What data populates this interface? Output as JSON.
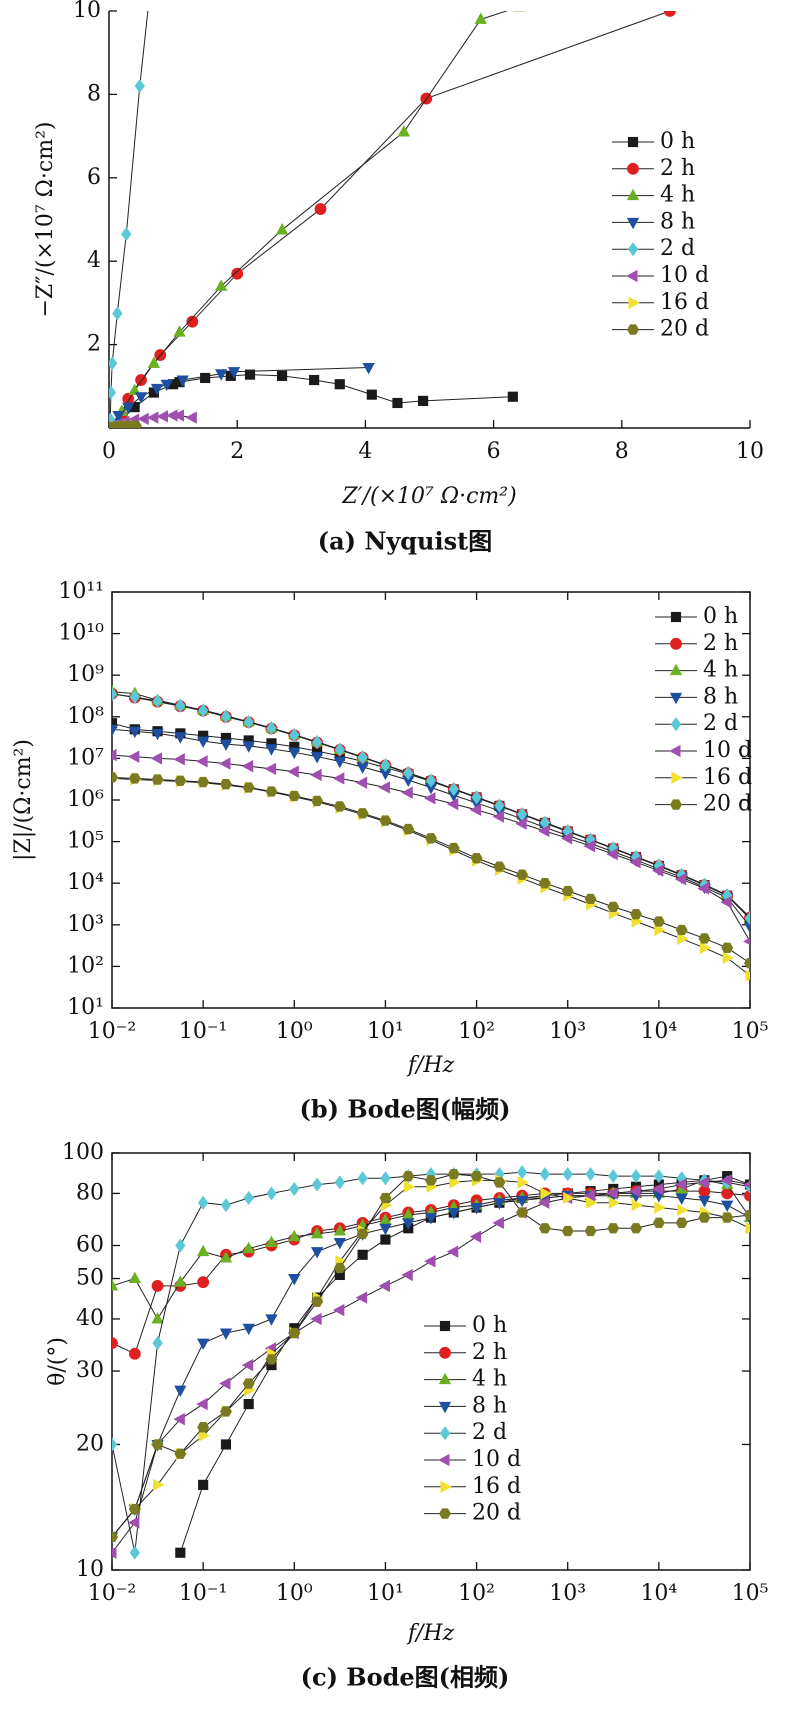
{
  "chart_data": [
    {
      "type": "line",
      "caption": "(a) Nyquist图",
      "x_label": "Z′/(×10⁷ Ω·cm²)",
      "y_label": "−Z″/(×10⁷ Ω·cm²)",
      "xlim": [
        0,
        10
      ],
      "ylim": [
        0,
        10
      ],
      "xticks": [
        0,
        2,
        4,
        6,
        8,
        10
      ],
      "yticks": [
        2,
        4,
        6,
        8,
        10
      ],
      "xscale": "linear",
      "yscale": "linear",
      "legend": "right",
      "series": [
        {
          "name": "0 h",
          "color": "#1a1a1a",
          "marker": "square",
          "x": [
            0.05,
            0.2,
            0.4,
            0.7,
            1.0,
            1.1,
            1.5,
            1.9,
            2.2,
            2.7,
            3.2,
            3.6,
            4.1,
            4.5,
            4.9,
            6.3
          ],
          "values": [
            0.05,
            0.2,
            0.5,
            0.85,
            1.05,
            1.1,
            1.2,
            1.25,
            1.28,
            1.25,
            1.15,
            1.05,
            0.8,
            0.6,
            0.65,
            0.75
          ]
        },
        {
          "name": "2 h",
          "color": "#e02020",
          "marker": "circle",
          "x": [
            0.05,
            0.2,
            0.3,
            0.5,
            0.8,
            1.3,
            2.0,
            3.3,
            4.95,
            8.75
          ],
          "values": [
            0.1,
            0.3,
            0.7,
            1.15,
            1.75,
            2.55,
            3.7,
            5.25,
            7.9,
            10
          ]
        },
        {
          "name": "4 h",
          "color": "#6ab023",
          "marker": "triangle-up",
          "x": [
            0.05,
            0.2,
            0.4,
            0.7,
            1.1,
            1.75,
            2.7,
            4.6,
            5.8,
            6.4
          ],
          "values": [
            0.1,
            0.4,
            0.9,
            1.55,
            2.3,
            3.4,
            4.75,
            7.1,
            9.8,
            10.1
          ]
        },
        {
          "name": "8 h",
          "color": "#1f4fa0",
          "marker": "triangle-down",
          "x": [
            0.05,
            0.15,
            0.3,
            0.5,
            0.75,
            0.9,
            1.15,
            1.75,
            1.95,
            4.05
          ],
          "values": [
            0.1,
            0.3,
            0.5,
            0.75,
            0.95,
            1.05,
            1.15,
            1.3,
            1.35,
            1.45
          ]
        },
        {
          "name": "2 d",
          "color": "#5bc8d8",
          "marker": "diamond",
          "x": [
            0.02,
            0.03,
            0.05,
            0.13,
            0.27,
            0.48,
            0.62
          ],
          "values": [
            0.2,
            0.85,
            1.55,
            2.75,
            4.65,
            8.2,
            10.2
          ]
        },
        {
          "name": "10 d",
          "color": "#a04fb0",
          "marker": "triangle-left",
          "x": [
            0.05,
            0.15,
            0.25,
            0.4,
            0.55,
            0.7,
            0.85,
            1.0,
            1.1,
            1.3
          ],
          "values": [
            0.05,
            0.1,
            0.15,
            0.2,
            0.22,
            0.25,
            0.28,
            0.3,
            0.3,
            0.25
          ]
        },
        {
          "name": "16 d",
          "color": "#f0e030",
          "marker": "triangle-right",
          "x": [
            0.02,
            0.1,
            0.2,
            0.3,
            0.4
          ],
          "values": [
            0.02,
            0.03,
            0.04,
            0.05,
            0.05
          ]
        },
        {
          "name": "20 d",
          "color": "#7a7a20",
          "marker": "hexagon",
          "x": [
            0.02,
            0.08,
            0.15,
            0.25,
            0.35,
            0.42
          ],
          "values": [
            0.02,
            0.03,
            0.04,
            0.05,
            0.05,
            0.05
          ]
        }
      ]
    },
    {
      "type": "line",
      "caption": "(b) Bode图(幅频)",
      "x_label": "f/Hz",
      "y_label": "|Z|/(Ω·cm²)",
      "xlim": [
        0.01,
        100000
      ],
      "ylim": [
        10,
        100000000000
      ],
      "xscale": "log",
      "yscale": "log",
      "legend": "upper right",
      "xticks": [
        {
          "value": 0.01,
          "label": "10⁻²"
        },
        {
          "value": 0.1,
          "label": "10⁻¹"
        },
        {
          "value": 1,
          "label": "10⁰"
        },
        {
          "value": 10,
          "label": "10¹"
        },
        {
          "value": 100,
          "label": "10²"
        },
        {
          "value": 1000,
          "label": "10³"
        },
        {
          "value": 10000,
          "label": "10⁴"
        },
        {
          "value": 100000,
          "label": "10⁵"
        }
      ],
      "yticks": [
        {
          "value": 10,
          "label": "10¹"
        },
        {
          "value": 100,
          "label": "10²"
        },
        {
          "value": 1000,
          "label": "10³"
        },
        {
          "value": 10000,
          "label": "10⁴"
        },
        {
          "value": 100000,
          "label": "10⁵"
        },
        {
          "value": 1000000,
          "label": "10⁶"
        },
        {
          "value": 10000000,
          "label": "10⁷"
        },
        {
          "value": 100000000,
          "label": "10⁸"
        },
        {
          "value": 1000000000,
          "label": "10⁹"
        },
        {
          "value": 10000000000,
          "label": "10¹⁰"
        },
        {
          "value": 100000000000,
          "label": "10¹¹"
        }
      ],
      "x": [
        0.01,
        0.0178,
        0.0316,
        0.0562,
        0.1,
        0.178,
        0.316,
        0.562,
        1,
        1.78,
        3.16,
        5.62,
        10,
        17.8,
        31.6,
        56.2,
        100,
        178,
        316,
        562,
        1000,
        1780,
        3160,
        5620,
        10000,
        17800,
        31600,
        56200,
        100000
      ],
      "series": [
        {
          "name": "0 h",
          "color": "#1a1a1a",
          "marker": "square",
          "values": [
            70000000,
            50000000,
            45000000,
            40000000,
            35000000,
            31000000,
            27000000,
            23000000,
            19000000,
            15000000,
            11500000,
            8500000,
            6000000,
            4200000,
            2800000,
            1800000,
            1150000,
            720000,
            450000,
            280000,
            175000,
            110000,
            68000,
            42000,
            26000,
            15500,
            9000,
            5000,
            1400
          ]
        },
        {
          "name": "2 h",
          "color": "#e02020",
          "marker": "circle",
          "values": [
            360000000,
            290000000,
            230000000,
            180000000,
            140000000,
            100000000,
            74000000,
            52000000,
            36000000,
            24000000,
            16000000,
            10500000,
            6800000,
            4400000,
            2900000,
            1800000,
            1150000,
            720000,
            450000,
            280000,
            175000,
            110000,
            68000,
            42000,
            26000,
            15500,
            9000,
            5000,
            1500
          ]
        },
        {
          "name": "4 h",
          "color": "#6ab023",
          "marker": "triangle-up",
          "values": [
            400000000,
            360000000,
            250000000,
            190000000,
            145000000,
            105000000,
            76000000,
            54000000,
            37000000,
            25000000,
            16500000,
            10800000,
            7000000,
            4500000,
            2950000,
            1850000,
            1180000,
            740000,
            460000,
            290000,
            180000,
            112000,
            70000,
            43000,
            27000,
            16000,
            9300,
            5200,
            1500
          ]
        },
        {
          "name": "8 h",
          "color": "#1f4fa0",
          "marker": "triangle-down",
          "values": [
            50000000,
            45000000,
            40000000,
            33000000,
            26000000,
            22000000,
            20000000,
            17000000,
            14000000,
            11000000,
            8500000,
            6200000,
            4400000,
            3000000,
            2000000,
            1300000,
            850000,
            550000,
            350000,
            220000,
            140000,
            90000,
            57000,
            36000,
            22000,
            14000,
            8000,
            4500,
            900
          ]
        },
        {
          "name": "2 d",
          "color": "#5bc8d8",
          "marker": "diamond",
          "values": [
            350000000,
            300000000,
            240000000,
            185000000,
            142000000,
            102000000,
            75000000,
            53000000,
            36500000,
            24500000,
            16200000,
            10600000,
            6900000,
            4450000,
            2920000,
            1820000,
            1160000,
            730000,
            455000,
            285000,
            177000,
            111000,
            69000,
            42500,
            26500,
            15800,
            9100,
            5100,
            1450
          ]
        },
        {
          "name": "10 d",
          "color": "#a04fb0",
          "marker": "triangle-left",
          "values": [
            12000000,
            11000000,
            10000000,
            9500000,
            8500000,
            7500000,
            6500000,
            5600000,
            4800000,
            4000000,
            3300000,
            2600000,
            2000000,
            1500000,
            1100000,
            800000,
            580000,
            400000,
            270000,
            180000,
            120000,
            78000,
            50000,
            32000,
            20000,
            12500,
            7500,
            3500,
            400
          ]
        },
        {
          "name": "16 d",
          "color": "#f0e030",
          "marker": "triangle-right",
          "values": [
            3300000,
            3100000,
            2950000,
            2800000,
            2600000,
            2300000,
            1950000,
            1550000,
            1200000,
            900000,
            650000,
            450000,
            300000,
            185000,
            110000,
            62000,
            35000,
            21000,
            13000,
            8000,
            5000,
            3100,
            1900,
            1200,
            750,
            460,
            280,
            160,
            60
          ]
        },
        {
          "name": "20 d",
          "color": "#7a7a20",
          "marker": "hexagon",
          "values": [
            3500000,
            3300000,
            3100000,
            2900000,
            2700000,
            2400000,
            2000000,
            1600000,
            1250000,
            950000,
            700000,
            480000,
            320000,
            200000,
            120000,
            70000,
            40000,
            25000,
            16000,
            10000,
            6500,
            4200,
            2700,
            1800,
            1200,
            750,
            470,
            280,
            120
          ]
        }
      ]
    },
    {
      "type": "line",
      "caption": "(c) Bode图(相频)",
      "x_label": "f/Hz",
      "y_label": "θ/(°)",
      "xlim": [
        0.01,
        100000
      ],
      "ylim": [
        10,
        100
      ],
      "xscale": "log",
      "yscale": "log",
      "legend": "center",
      "xticks": [
        {
          "value": 0.01,
          "label": "10⁻²"
        },
        {
          "value": 0.1,
          "label": "10⁻¹"
        },
        {
          "value": 1,
          "label": "10⁰"
        },
        {
          "value": 10,
          "label": "10¹"
        },
        {
          "value": 100,
          "label": "10²"
        },
        {
          "value": 1000,
          "label": "10³"
        },
        {
          "value": 10000,
          "label": "10⁴"
        },
        {
          "value": 100000,
          "label": "10⁵"
        }
      ],
      "yticks": [
        10,
        20,
        30,
        40,
        50,
        60,
        80,
        100
      ],
      "x": [
        0.01,
        0.0178,
        0.0316,
        0.0562,
        0.1,
        0.178,
        0.316,
        0.562,
        1,
        1.78,
        3.16,
        5.62,
        10,
        17.8,
        31.6,
        56.2,
        100,
        178,
        316,
        562,
        1000,
        1780,
        3160,
        5620,
        10000,
        17800,
        31600,
        56200,
        100000
      ],
      "series": [
        {
          "name": "0 h",
          "color": "#1a1a1a",
          "marker": "square",
          "values": [
            null,
            null,
            null,
            11,
            16,
            20,
            25,
            31,
            38,
            45,
            51,
            57,
            62,
            66,
            70,
            72,
            74,
            76,
            78,
            79,
            80,
            81,
            82,
            83,
            84,
            85,
            86,
            88,
            84
          ]
        },
        {
          "name": "2 h",
          "color": "#e02020",
          "marker": "circle",
          "values": [
            35,
            33,
            48,
            48,
            49,
            57,
            58,
            60,
            62,
            65,
            66,
            68,
            70,
            72,
            73,
            75,
            77,
            78,
            79,
            80,
            80,
            80,
            80,
            81,
            81,
            81,
            81,
            80,
            79
          ]
        },
        {
          "name": "4 h",
          "color": "#6ab023",
          "marker": "triangle-up",
          "values": [
            48,
            50,
            40,
            49,
            58,
            56,
            59,
            61,
            63,
            64,
            65,
            67,
            69,
            71,
            72,
            74,
            75,
            77,
            78,
            78,
            79,
            79,
            80,
            80,
            80,
            82,
            86,
            84,
            70
          ]
        },
        {
          "name": "8 h",
          "color": "#1f4fa0",
          "marker": "triangle-down",
          "values": [
            12,
            14,
            20,
            27,
            35,
            37,
            38,
            40,
            50,
            58,
            61,
            64,
            66,
            68,
            70,
            72,
            74,
            76,
            77,
            78,
            79,
            79,
            79,
            79,
            79,
            78,
            77,
            75,
            70
          ]
        },
        {
          "name": "2 d",
          "color": "#5bc8d8",
          "marker": "diamond",
          "values": [
            20,
            11,
            35,
            60,
            76,
            75,
            78,
            80,
            82,
            84,
            85,
            87,
            87,
            88,
            89,
            89,
            89,
            89,
            90,
            89,
            89,
            89,
            88,
            88,
            88,
            87,
            86,
            85,
            83
          ]
        },
        {
          "name": "10 d",
          "color": "#a04fb0",
          "marker": "triangle-left",
          "values": [
            11,
            13,
            20,
            23,
            25,
            28,
            31,
            34,
            37,
            40,
            42,
            45,
            48,
            51,
            55,
            58,
            63,
            68,
            72,
            76,
            78,
            79,
            80,
            81,
            82,
            84,
            85,
            86,
            84
          ]
        },
        {
          "name": "16 d",
          "color": "#f0e030",
          "marker": "triangle-right",
          "values": [
            12,
            14,
            16,
            19,
            21,
            24,
            27,
            33,
            37,
            45,
            55,
            65,
            75,
            83,
            83,
            85,
            86,
            86,
            85,
            80,
            78,
            76,
            76,
            75,
            74,
            73,
            72,
            70,
            66
          ]
        },
        {
          "name": "20 d",
          "color": "#7a7a20",
          "marker": "hexagon",
          "values": [
            12,
            14,
            20,
            19,
            22,
            24,
            28,
            32,
            37,
            44,
            53,
            64,
            78,
            88,
            86,
            89,
            88,
            85,
            72,
            66,
            65,
            65,
            66,
            66,
            68,
            68,
            70,
            70,
            71
          ]
        }
      ]
    }
  ]
}
